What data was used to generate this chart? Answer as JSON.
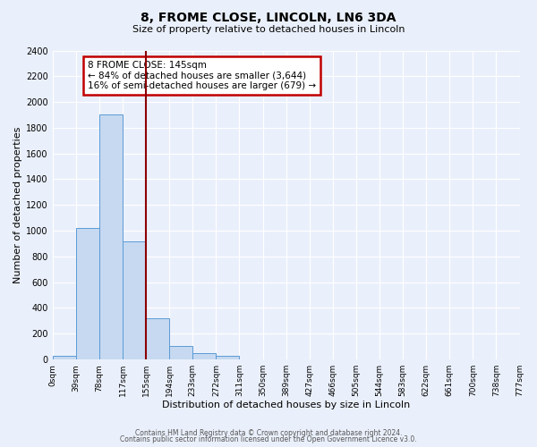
{
  "title": "8, FROME CLOSE, LINCOLN, LN6 3DA",
  "subtitle": "Size of property relative to detached houses in Lincoln",
  "xlabel": "Distribution of detached houses by size in Lincoln",
  "ylabel": "Number of detached properties",
  "bin_labels": [
    "0sqm",
    "39sqm",
    "78sqm",
    "117sqm",
    "155sqm",
    "194sqm",
    "233sqm",
    "272sqm",
    "311sqm",
    "350sqm",
    "389sqm",
    "427sqm",
    "466sqm",
    "505sqm",
    "544sqm",
    "583sqm",
    "622sqm",
    "661sqm",
    "700sqm",
    "738sqm",
    "777sqm"
  ],
  "bar_values": [
    25,
    1020,
    1900,
    920,
    320,
    105,
    50,
    25,
    0,
    0,
    0,
    0,
    0,
    0,
    0,
    0,
    0,
    0,
    0,
    0
  ],
  "bar_color": "#c6d9f1",
  "bar_edge_color": "#5b9bd5",
  "vline_x": 4.0,
  "vline_color": "#8b0000",
  "annotation_text": "8 FROME CLOSE: 145sqm\n← 84% of detached houses are smaller (3,644)\n16% of semi-detached houses are larger (679) →",
  "annotation_box_color": "white",
  "annotation_box_edge_color": "#c00000",
  "ylim": [
    0,
    2400
  ],
  "yticks": [
    0,
    200,
    400,
    600,
    800,
    1000,
    1200,
    1400,
    1600,
    1800,
    2000,
    2200,
    2400
  ],
  "n_bars": 20,
  "background_color": "#eaf0fb",
  "grid_color": "white",
  "footer_line1": "Contains HM Land Registry data © Crown copyright and database right 2024.",
  "footer_line2": "Contains public sector information licensed under the Open Government Licence v3.0."
}
